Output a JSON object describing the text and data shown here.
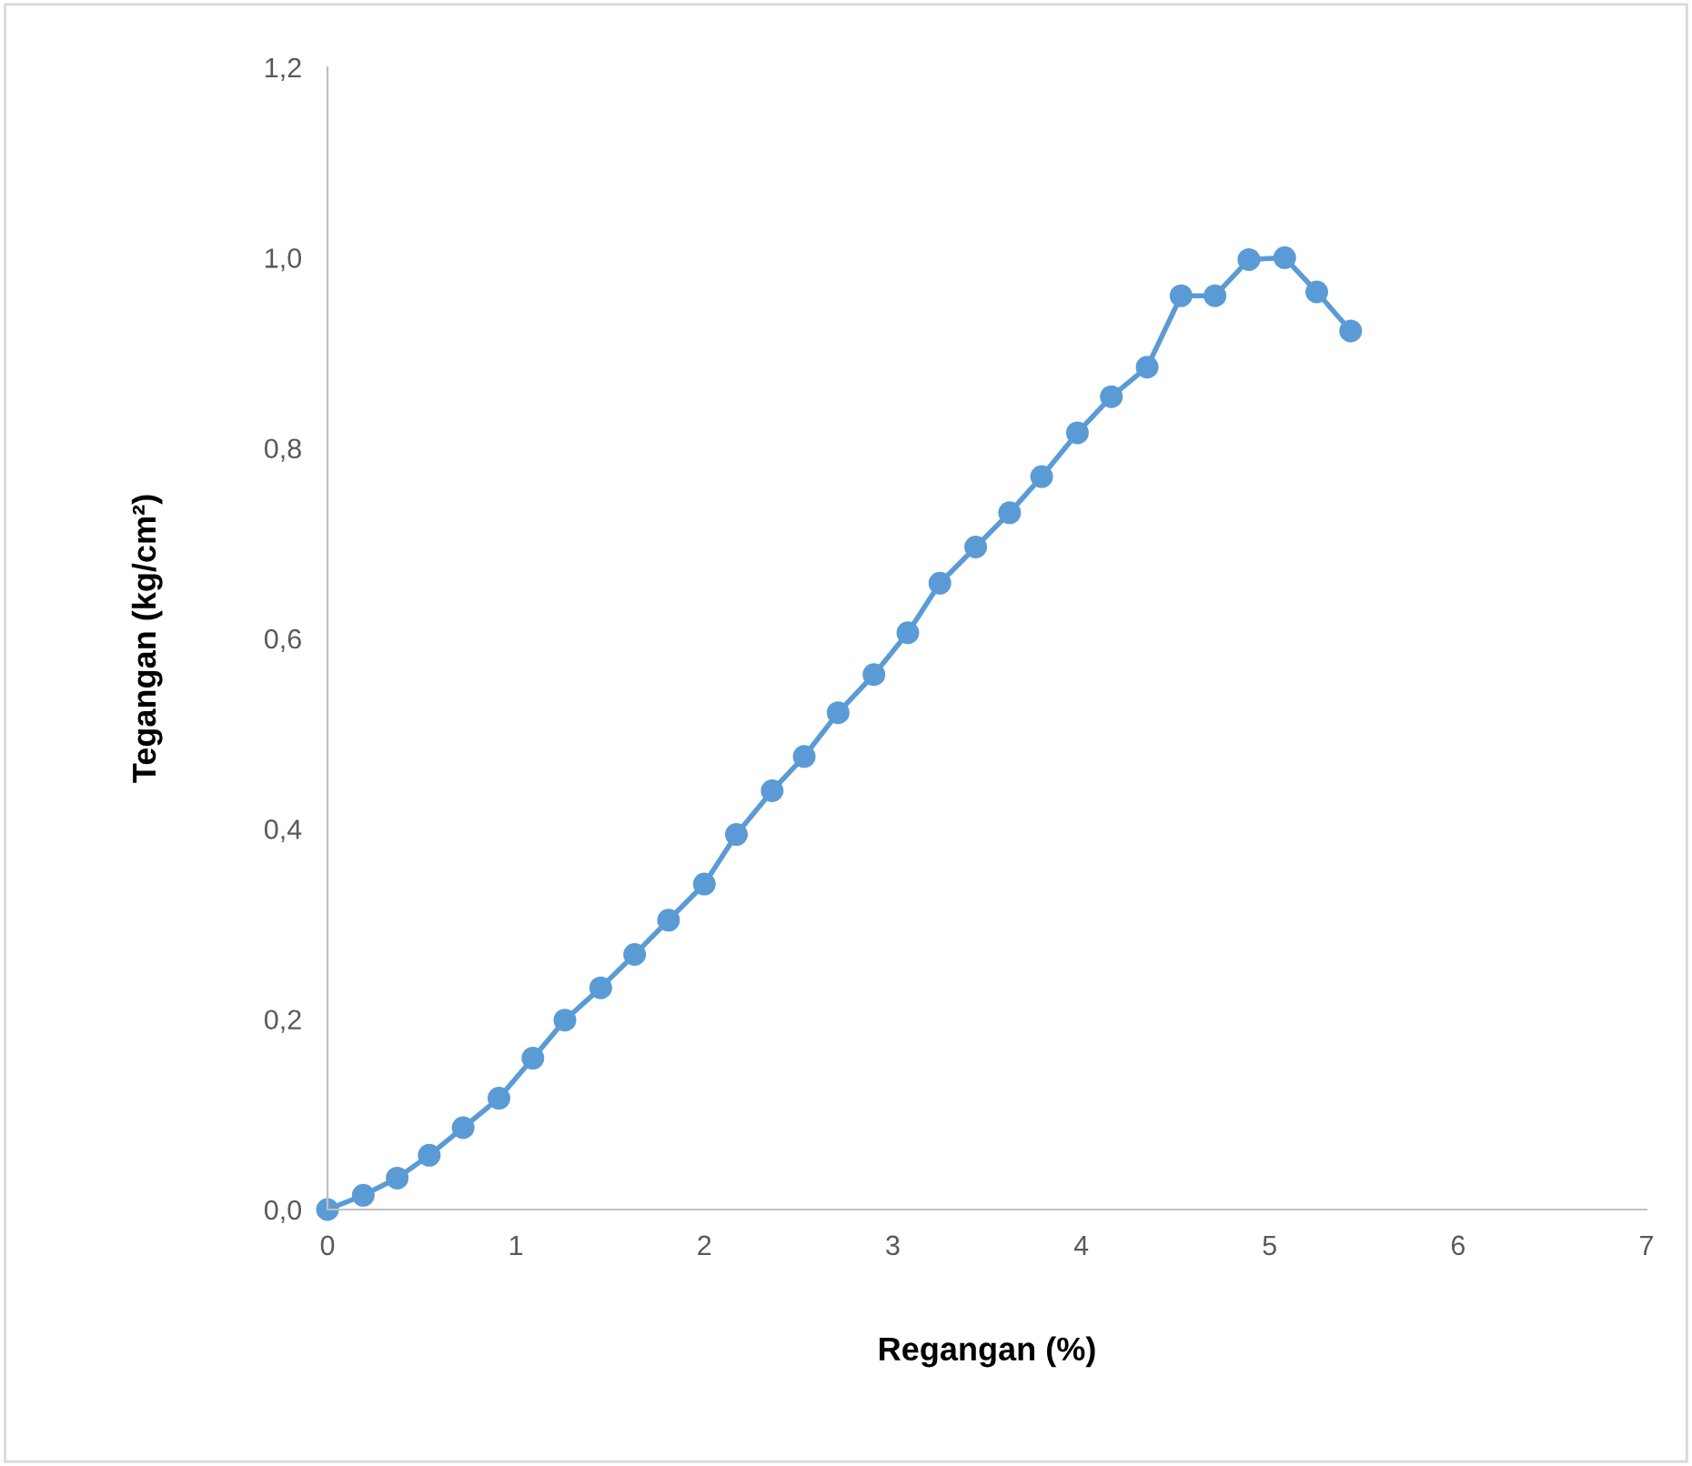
{
  "chart_data": {
    "type": "line",
    "xlabel": "Regangan (%)",
    "ylabel": "Tegangan (kg/cm²)",
    "xlim": [
      0,
      7
    ],
    "xticks": [
      0,
      1,
      2,
      3,
      4,
      5,
      6,
      7
    ],
    "ylim": [
      0,
      1.2
    ],
    "yticks": [
      {
        "value": 0,
        "label": "0,0"
      },
      {
        "value": 0.2,
        "label": "0,2"
      },
      {
        "value": 0.4,
        "label": "0,4"
      },
      {
        "value": 0.6,
        "label": "0,6"
      },
      {
        "value": 0.8,
        "label": "0,8"
      },
      {
        "value": 1.0,
        "label": "1,0"
      },
      {
        "value": 1.2,
        "label": "1,2"
      }
    ],
    "grid": false,
    "marker": "circle",
    "line_style": "solid",
    "series": [
      {
        "color": "#5b9bd5",
        "x": [
          0,
          0.19,
          0.37,
          0.54,
          0.72,
          0.91,
          1.09,
          1.26,
          1.45,
          1.63,
          1.81,
          2.0,
          2.17,
          2.36,
          2.53,
          2.71,
          2.9,
          3.08,
          3.25,
          3.44,
          3.62,
          3.79,
          3.98,
          4.16,
          4.35,
          4.53,
          4.71,
          4.89,
          5.08,
          5.25,
          5.43
        ],
        "values": [
          0,
          0.015,
          0.033,
          0.057,
          0.086,
          0.117,
          0.159,
          0.199,
          0.233,
          0.268,
          0.304,
          0.342,
          0.394,
          0.44,
          0.476,
          0.522,
          0.562,
          0.606,
          0.658,
          0.696,
          0.732,
          0.77,
          0.816,
          0.854,
          0.885,
          0.96,
          0.96,
          0.998,
          1.0,
          0.964,
          0.923
        ]
      }
    ]
  }
}
